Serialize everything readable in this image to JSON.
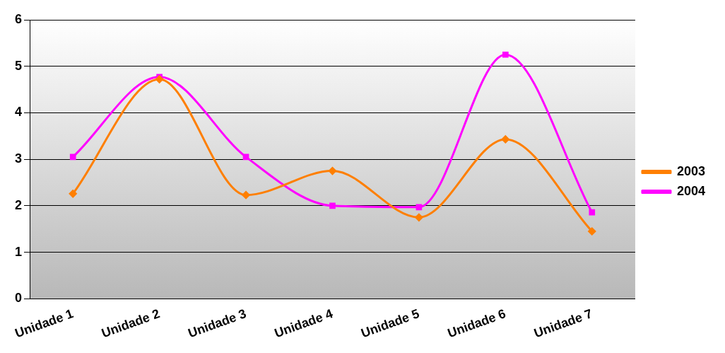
{
  "chart_data": {
    "type": "line",
    "categories": [
      "Unidade 1",
      "Unidade 2",
      "Unidade 3",
      "Unidade 4",
      "Unidade 5",
      "Unidade 6",
      "Unidade 7"
    ],
    "series": [
      {
        "name": "2003",
        "color": "#ff7f00",
        "marker": "diamond",
        "values": [
          2.26,
          4.72,
          2.23,
          2.75,
          1.75,
          3.43,
          1.45
        ]
      },
      {
        "name": "2004",
        "color": "#ff00ff",
        "marker": "square",
        "values": [
          3.05,
          4.77,
          3.05,
          2.0,
          1.97,
          5.25,
          1.86
        ]
      }
    ],
    "ylim": [
      0,
      6
    ],
    "yticks": [
      0,
      1,
      2,
      3,
      4,
      5,
      6
    ],
    "grid": "y",
    "legend": "right"
  }
}
